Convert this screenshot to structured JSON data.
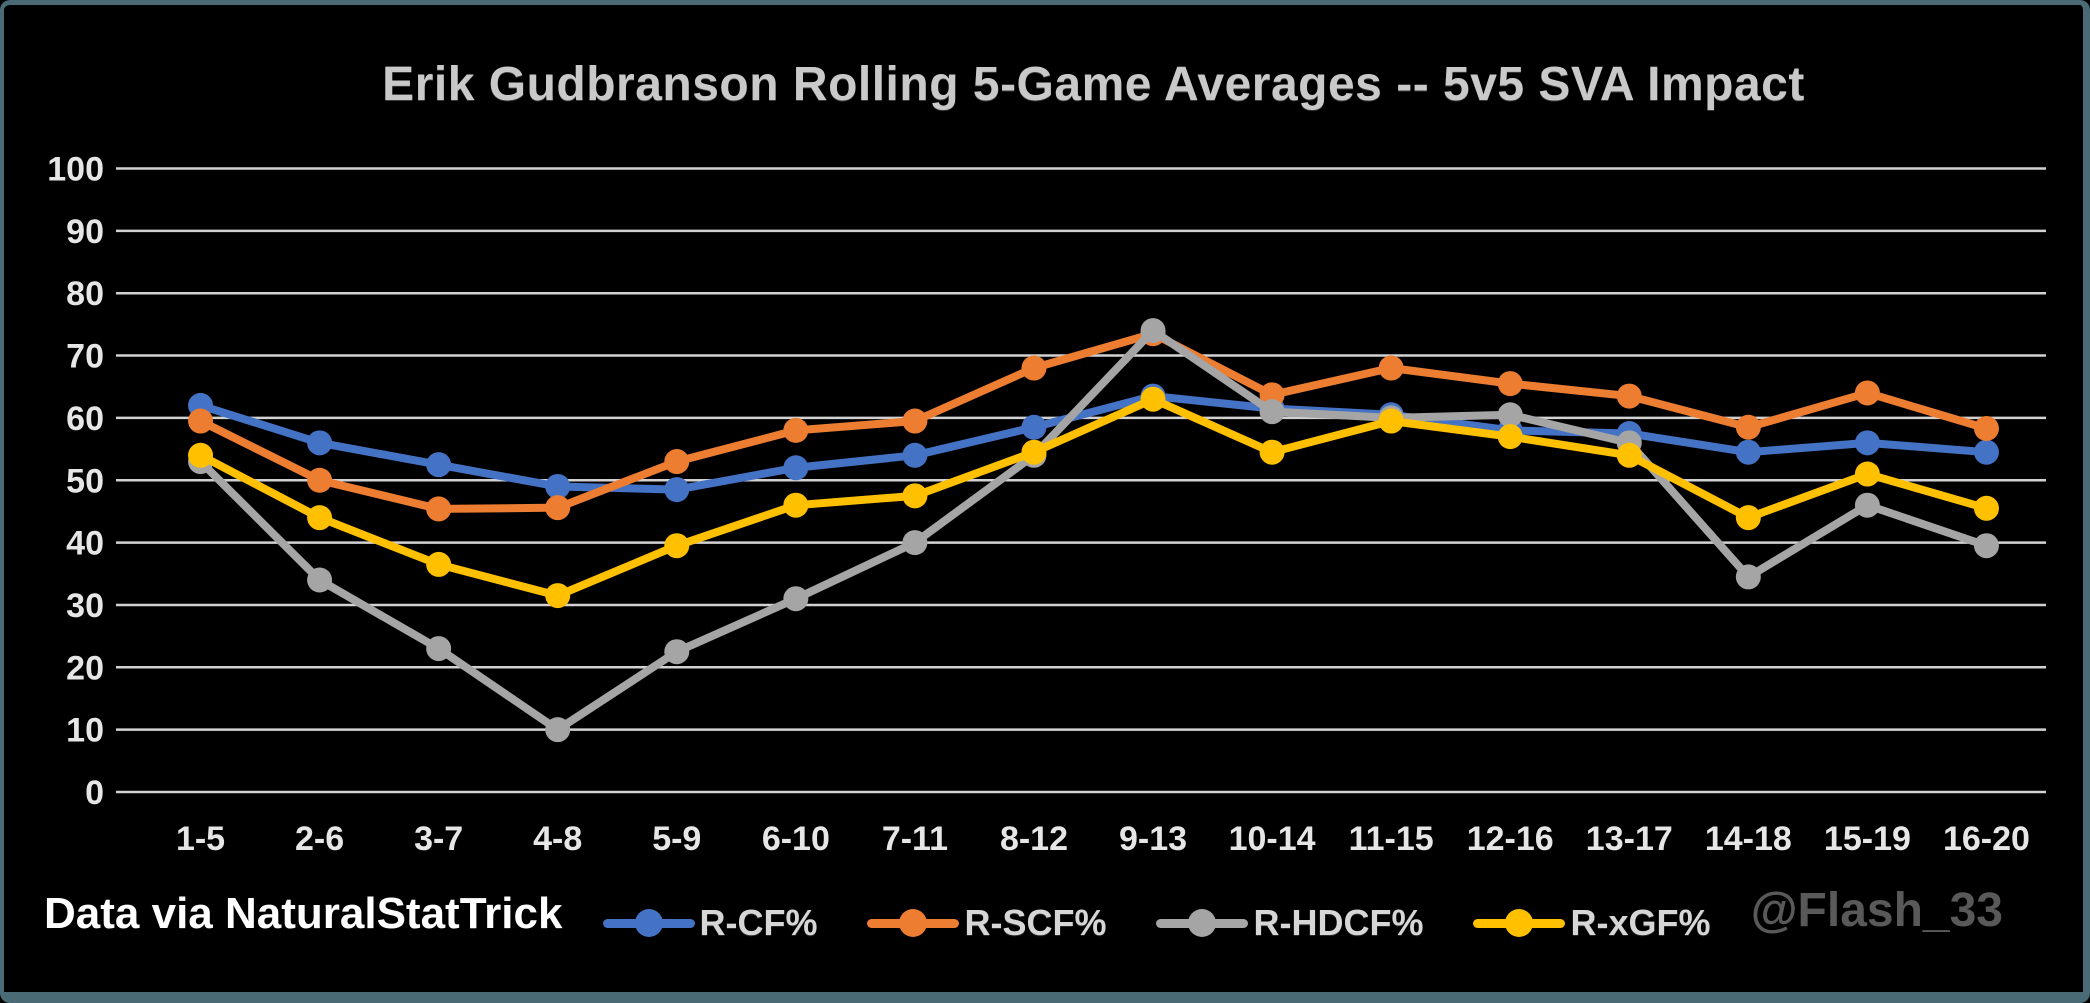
{
  "title": "Erik Gudbranson Rolling 5-Game Averages -- 5v5 SVA Impact",
  "credit": "Data via NaturalStatTrick",
  "watermark": "@Flash_33",
  "colors": {
    "background": "#000000",
    "frame_border": "#4a6a76",
    "gridline": "#d2d2d2",
    "title_text": "#c9c9c9",
    "axis_text": "#e6e6e6",
    "legend_text": "#d6d6d6",
    "credit_text": "#ffffff",
    "watermark_text": "#595959"
  },
  "chart_data": {
    "type": "line",
    "title": "Erik Gudbranson Rolling 5-Game Averages -- 5v5 SVA Impact",
    "xlabel": "",
    "ylabel": "",
    "ylim": [
      0,
      100
    ],
    "yticks": [
      0,
      10,
      20,
      30,
      40,
      50,
      60,
      70,
      80,
      90,
      100
    ],
    "grid": "horizontal",
    "legend_position": "bottom",
    "marker": "circle",
    "categories": [
      "1-5",
      "2-6",
      "3-7",
      "4-8",
      "5-9",
      "6-10",
      "7-11",
      "8-12",
      "9-13",
      "10-14",
      "11-15",
      "12-16",
      "13-17",
      "14-18",
      "15-19",
      "16-20"
    ],
    "series": [
      {
        "name": "R-CF%",
        "color": "#4472C4",
        "values": [
          62,
          56,
          52.5,
          49,
          48.5,
          52,
          54,
          58.5,
          63.5,
          61.5,
          60.5,
          58,
          57.5,
          54.5,
          56,
          54.5
        ]
      },
      {
        "name": "R-SCF%",
        "color": "#ED7D31",
        "values": [
          59.5,
          50,
          45.4,
          45.6,
          53,
          58,
          59.5,
          68,
          73.5,
          63.7,
          68,
          65.5,
          63.5,
          58.5,
          64,
          58.3
        ]
      },
      {
        "name": "R-HDCF%",
        "color": "#A5A5A5",
        "values": [
          53,
          34,
          23,
          10,
          22.5,
          31,
          40,
          54,
          74,
          61,
          60,
          60.5,
          56,
          34.5,
          46,
          39.5
        ]
      },
      {
        "name": "R-xGF%",
        "color": "#FFC000",
        "values": [
          54,
          44,
          36.5,
          31.5,
          39.5,
          46,
          47.5,
          54.5,
          63,
          54.5,
          59.5,
          57,
          54,
          44,
          51,
          45.5
        ]
      }
    ]
  }
}
